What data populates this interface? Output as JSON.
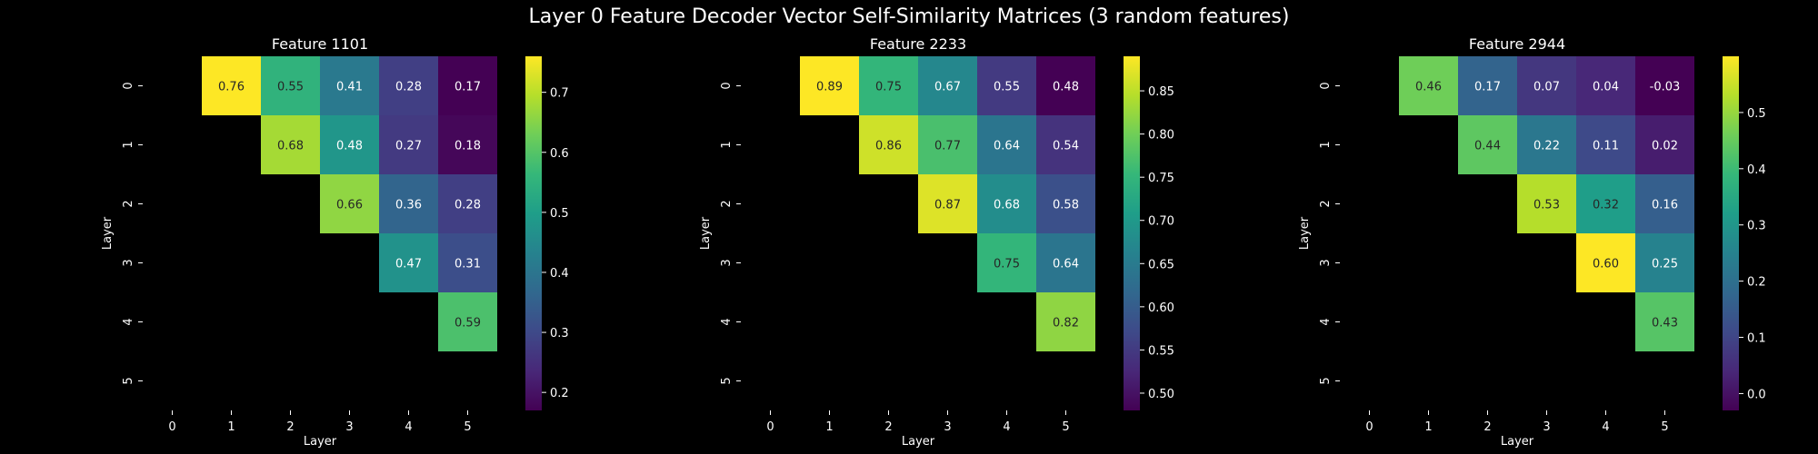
{
  "figure": {
    "title": "Layer 0 Feature Decoder Vector Self-Similarity Matrices (3 random features)"
  },
  "colormap": [
    "#440154",
    "#482878",
    "#3e4a89",
    "#31688e",
    "#26828e",
    "#1f9e89",
    "#35b779",
    "#6ece58",
    "#b5de2b",
    "#fde725"
  ],
  "chart_data": [
    {
      "type": "heatmap",
      "title": "Feature 1101",
      "xlabel": "Layer",
      "ylabel": "Layer",
      "x_ticks": [
        "0",
        "1",
        "2",
        "3",
        "4",
        "5"
      ],
      "y_ticks": [
        "0",
        "1",
        "2",
        "3",
        "4",
        "5"
      ],
      "cells": [
        {
          "row": 0,
          "col": 1,
          "value": 0.76,
          "label": "0.76"
        },
        {
          "row": 0,
          "col": 2,
          "value": 0.55,
          "label": "0.55"
        },
        {
          "row": 0,
          "col": 3,
          "value": 0.41,
          "label": "0.41"
        },
        {
          "row": 0,
          "col": 4,
          "value": 0.28,
          "label": "0.28"
        },
        {
          "row": 0,
          "col": 5,
          "value": 0.17,
          "label": "0.17"
        },
        {
          "row": 1,
          "col": 2,
          "value": 0.68,
          "label": "0.68"
        },
        {
          "row": 1,
          "col": 3,
          "value": 0.48,
          "label": "0.48"
        },
        {
          "row": 1,
          "col": 4,
          "value": 0.27,
          "label": "0.27"
        },
        {
          "row": 1,
          "col": 5,
          "value": 0.18,
          "label": "0.18"
        },
        {
          "row": 2,
          "col": 3,
          "value": 0.66,
          "label": "0.66"
        },
        {
          "row": 2,
          "col": 4,
          "value": 0.36,
          "label": "0.36"
        },
        {
          "row": 2,
          "col": 5,
          "value": 0.28,
          "label": "0.28"
        },
        {
          "row": 3,
          "col": 4,
          "value": 0.47,
          "label": "0.47"
        },
        {
          "row": 3,
          "col": 5,
          "value": 0.31,
          "label": "0.31"
        },
        {
          "row": 4,
          "col": 5,
          "value": 0.59,
          "label": "0.59"
        }
      ],
      "vmin": 0.17,
      "vmax": 0.76,
      "colorbar_ticks": [
        "0.2",
        "0.3",
        "0.4",
        "0.5",
        "0.6",
        "0.7"
      ],
      "colorbar_tick_values": [
        0.2,
        0.3,
        0.4,
        0.5,
        0.6,
        0.7
      ]
    },
    {
      "type": "heatmap",
      "title": "Feature 2233",
      "xlabel": "Layer",
      "ylabel": "Layer",
      "x_ticks": [
        "0",
        "1",
        "2",
        "3",
        "4",
        "5"
      ],
      "y_ticks": [
        "0",
        "1",
        "2",
        "3",
        "4",
        "5"
      ],
      "cells": [
        {
          "row": 0,
          "col": 1,
          "value": 0.89,
          "label": "0.89"
        },
        {
          "row": 0,
          "col": 2,
          "value": 0.75,
          "label": "0.75"
        },
        {
          "row": 0,
          "col": 3,
          "value": 0.67,
          "label": "0.67"
        },
        {
          "row": 0,
          "col": 4,
          "value": 0.55,
          "label": "0.55"
        },
        {
          "row": 0,
          "col": 5,
          "value": 0.48,
          "label": "0.48"
        },
        {
          "row": 1,
          "col": 2,
          "value": 0.86,
          "label": "0.86"
        },
        {
          "row": 1,
          "col": 3,
          "value": 0.77,
          "label": "0.77"
        },
        {
          "row": 1,
          "col": 4,
          "value": 0.64,
          "label": "0.64"
        },
        {
          "row": 1,
          "col": 5,
          "value": 0.54,
          "label": "0.54"
        },
        {
          "row": 2,
          "col": 3,
          "value": 0.87,
          "label": "0.87"
        },
        {
          "row": 2,
          "col": 4,
          "value": 0.68,
          "label": "0.68"
        },
        {
          "row": 2,
          "col": 5,
          "value": 0.58,
          "label": "0.58"
        },
        {
          "row": 3,
          "col": 4,
          "value": 0.75,
          "label": "0.75"
        },
        {
          "row": 3,
          "col": 5,
          "value": 0.64,
          "label": "0.64"
        },
        {
          "row": 4,
          "col": 5,
          "value": 0.82,
          "label": "0.82"
        }
      ],
      "vmin": 0.48,
      "vmax": 0.89,
      "colorbar_ticks": [
        "0.50",
        "0.55",
        "0.60",
        "0.65",
        "0.70",
        "0.75",
        "0.80",
        "0.85"
      ],
      "colorbar_tick_values": [
        0.5,
        0.55,
        0.6,
        0.65,
        0.7,
        0.75,
        0.8,
        0.85
      ]
    },
    {
      "type": "heatmap",
      "title": "Feature 2944",
      "xlabel": "Layer",
      "ylabel": "Layer",
      "x_ticks": [
        "0",
        "1",
        "2",
        "3",
        "4",
        "5"
      ],
      "y_ticks": [
        "0",
        "1",
        "2",
        "3",
        "4",
        "5"
      ],
      "cells": [
        {
          "row": 0,
          "col": 1,
          "value": 0.46,
          "label": "0.46"
        },
        {
          "row": 0,
          "col": 2,
          "value": 0.17,
          "label": "0.17"
        },
        {
          "row": 0,
          "col": 3,
          "value": 0.07,
          "label": "0.07"
        },
        {
          "row": 0,
          "col": 4,
          "value": 0.04,
          "label": "0.04"
        },
        {
          "row": 0,
          "col": 5,
          "value": -0.03,
          "label": "-0.03"
        },
        {
          "row": 1,
          "col": 2,
          "value": 0.44,
          "label": "0.44"
        },
        {
          "row": 1,
          "col": 3,
          "value": 0.22,
          "label": "0.22"
        },
        {
          "row": 1,
          "col": 4,
          "value": 0.11,
          "label": "0.11"
        },
        {
          "row": 1,
          "col": 5,
          "value": 0.02,
          "label": "0.02"
        },
        {
          "row": 2,
          "col": 3,
          "value": 0.53,
          "label": "0.53"
        },
        {
          "row": 2,
          "col": 4,
          "value": 0.32,
          "label": "0.32"
        },
        {
          "row": 2,
          "col": 5,
          "value": 0.16,
          "label": "0.16"
        },
        {
          "row": 3,
          "col": 4,
          "value": 0.6,
          "label": "0.60"
        },
        {
          "row": 3,
          "col": 5,
          "value": 0.25,
          "label": "0.25"
        },
        {
          "row": 4,
          "col": 5,
          "value": 0.43,
          "label": "0.43"
        }
      ],
      "vmin": -0.03,
      "vmax": 0.6,
      "colorbar_ticks": [
        "0.0",
        "0.1",
        "0.2",
        "0.3",
        "0.4",
        "0.5"
      ],
      "colorbar_tick_values": [
        0.0,
        0.1,
        0.2,
        0.3,
        0.4,
        0.5
      ]
    }
  ]
}
